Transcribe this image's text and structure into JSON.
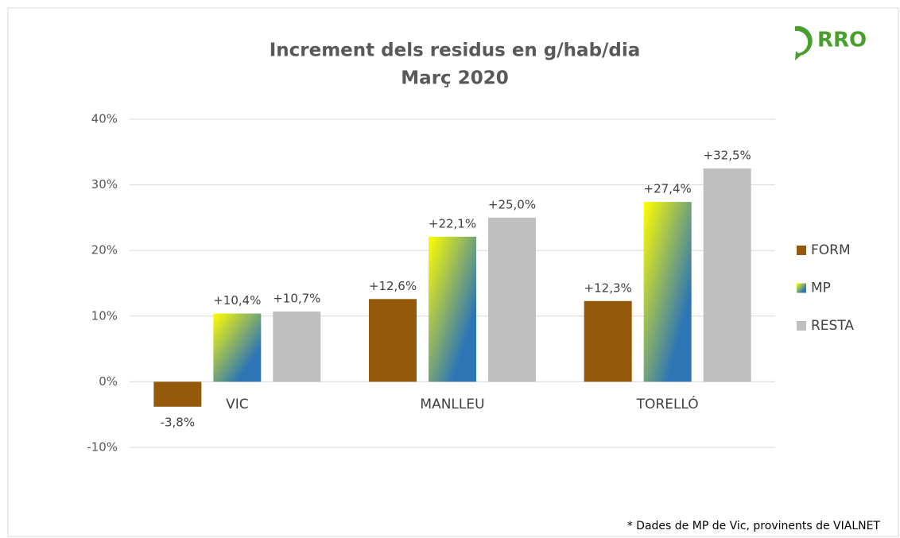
{
  "chart_data": {
    "type": "bar",
    "title": "Increment dels residus en g/hab/dia",
    "subtitle": "Març 2020",
    "logo": "RRO",
    "footnote": "* Dades de MP de Vic, provinents de VIALNET",
    "categories": [
      "VIC",
      "MANLLEU",
      "TORELLÓ"
    ],
    "series": [
      {
        "name": "FORM",
        "color": "#94590a",
        "values": [
          -3.8,
          12.6,
          12.3
        ],
        "value_labels": [
          "-3,8%",
          "+12,6%",
          "+12,3%"
        ]
      },
      {
        "name": "MP",
        "color": "#2e75b6",
        "gradient_from": "#ffff00",
        "values": [
          10.4,
          22.1,
          27.4
        ],
        "value_labels": [
          "+10,4%",
          "+22,1%",
          "+27,4%"
        ]
      },
      {
        "name": "RESTA",
        "color": "#bfbfbf",
        "values": [
          10.7,
          25.0,
          32.5
        ],
        "value_labels": [
          "+10,7%",
          "+25,0%",
          "+32,5%"
        ]
      }
    ],
    "ylim": [
      -10,
      40
    ],
    "yticks": [
      {
        "value": -10,
        "label": "-10%"
      },
      {
        "value": 0,
        "label": "0%"
      },
      {
        "value": 10,
        "label": "10%"
      },
      {
        "value": 20,
        "label": "20%"
      },
      {
        "value": 30,
        "label": "30%"
      },
      {
        "value": 40,
        "label": "40%"
      }
    ],
    "grid": true,
    "legend": "right"
  }
}
